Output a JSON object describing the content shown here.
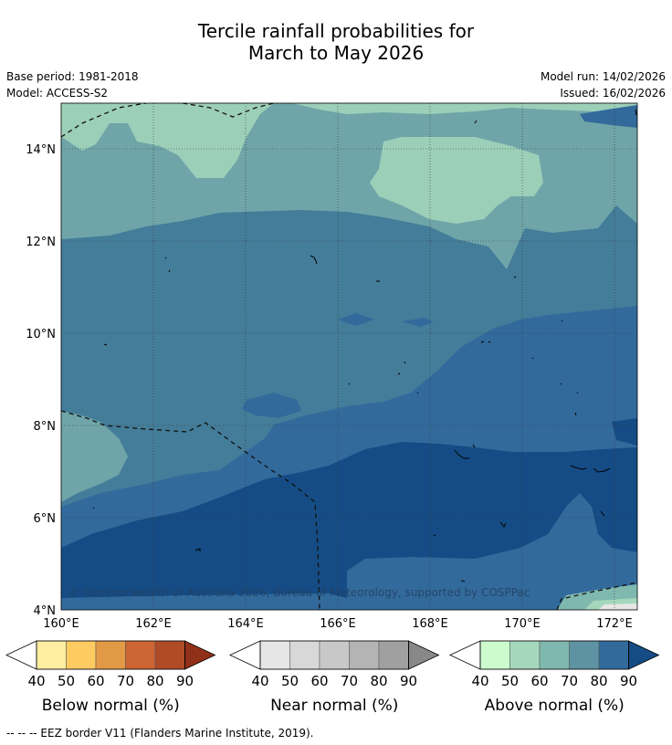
{
  "title": {
    "line1": "Tercile rainfall probabilities for",
    "line2": "March to May 2026"
  },
  "meta": {
    "base_period": "Base period: 1981-2018",
    "model": "Model: ACCESS-S2",
    "model_run": "Model run: 14/02/2026",
    "issued": "Issued: 16/02/2026"
  },
  "map": {
    "copyright": "© Commonwealth of Australia 2026, Bureau of Meteorology, supported by COSPPac",
    "lat_labels": [
      "14°N",
      "12°N",
      "10°N",
      "8°N",
      "6°N",
      "4°N"
    ],
    "lon_labels": [
      "160°E",
      "162°E",
      "164°E",
      "166°E",
      "168°E",
      "170°E",
      "172°E"
    ]
  },
  "colorbars": [
    {
      "label": "Below normal (%)",
      "ticks": [
        "40",
        "50",
        "60",
        "70",
        "80",
        "90"
      ],
      "colors": [
        "#fdeea0",
        "#fdcb62",
        "#e39a47",
        "#cd6535",
        "#b04b28",
        "#903018"
      ]
    },
    {
      "label": "Near normal (%)",
      "ticks": [
        "40",
        "50",
        "60",
        "70",
        "80",
        "90"
      ],
      "colors": [
        "#e6e6e6",
        "#d8d8d8",
        "#c8c8c8",
        "#b4b4b4",
        "#a0a0a0",
        "#888888"
      ]
    },
    {
      "label": "Above normal (%)",
      "ticks": [
        "40",
        "50",
        "60",
        "70",
        "80",
        "90"
      ],
      "colors": [
        "#ccfbce",
        "#a5d7bc",
        "#7fb8ae",
        "#5d93a2",
        "#326a9c",
        "#154c85"
      ]
    }
  ],
  "footnote": "--  --  -- EEZ border V11 (Flanders Marine Institute, 2019)."
}
